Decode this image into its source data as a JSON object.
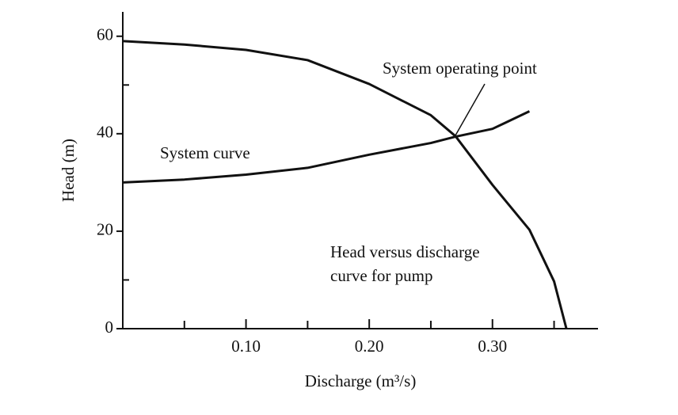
{
  "chart_data": {
    "type": "line",
    "x_label": "Discharge (m³/s)",
    "y_label": "Head (m)",
    "xlim": [
      0,
      0.385
    ],
    "ylim": [
      0,
      65
    ],
    "xticks": [
      {
        "value": 0.1,
        "label": "0.10"
      },
      {
        "value": 0.2,
        "label": "0.20"
      },
      {
        "value": 0.3,
        "label": "0.30"
      }
    ],
    "xminor": [
      0.05,
      0.15,
      0.25,
      0.35
    ],
    "yticks": [
      0,
      20,
      40,
      60
    ],
    "yminor": [
      10,
      30,
      50
    ],
    "series": [
      {
        "color": "#111111",
        "x": [
          0,
          0.05,
          0.1,
          0.15,
          0.2,
          0.25,
          0.27,
          0.3,
          0.33,
          0.35,
          0.36
        ],
        "values": [
          59,
          58.3,
          57.2,
          55.1,
          50.2,
          43.8,
          39.5,
          29.5,
          20.3,
          9.7,
          0
        ]
      },
      {
        "color": "#111111",
        "x": [
          0,
          0.05,
          0.1,
          0.15,
          0.2,
          0.25,
          0.27,
          0.3,
          0.33
        ],
        "values": [
          30,
          30.6,
          31.6,
          33,
          35.7,
          38.1,
          39.4,
          41,
          44.6
        ]
      }
    ],
    "annotations": [
      "System operating point",
      "System curve",
      "Head versus discharge",
      "curve for pump"
    ]
  }
}
